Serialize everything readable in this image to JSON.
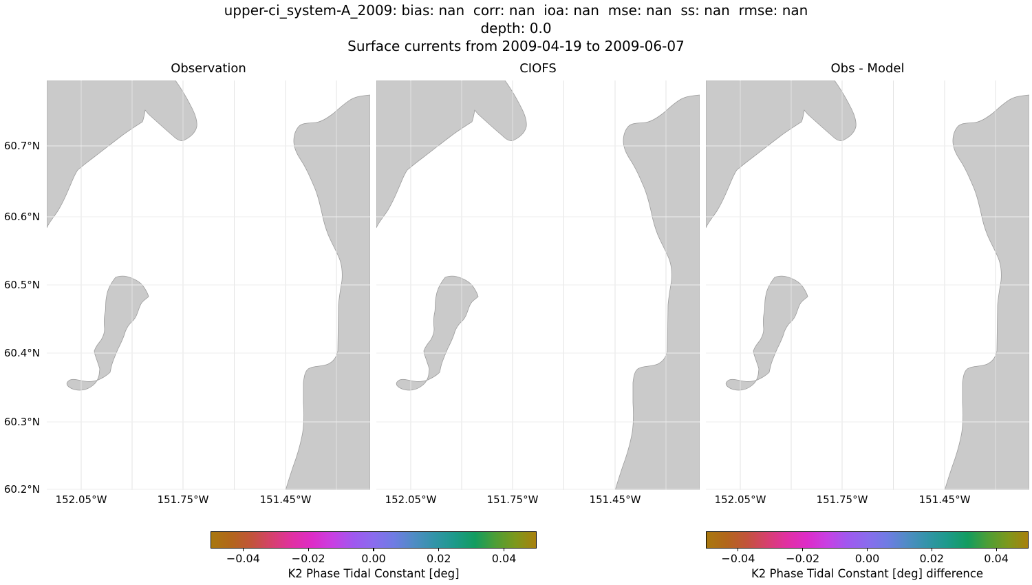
{
  "title": {
    "line1": "upper-ci_system-A_2009: bias: nan  corr: nan  ioa: nan  mse: nan  ss: nan  rmse: nan",
    "line2": "depth: 0.0",
    "line3": "Surface currents from 2009-04-19 to 2009-06-07"
  },
  "panels": [
    {
      "title": "Observation"
    },
    {
      "title": "CIOFS"
    },
    {
      "title": "Obs - Model"
    }
  ],
  "axes": {
    "lat_ticks": [
      "60.7°N",
      "60.6°N",
      "60.5°N",
      "60.4°N",
      "60.3°N",
      "60.2°N"
    ],
    "lon_ticks": [
      "152.05°W",
      "151.75°W",
      "151.45°W"
    ]
  },
  "colorbars": [
    {
      "label": "K2 Phase Tidal Constant [deg]",
      "ticks": [
        "−0.04",
        "−0.02",
        "0.00",
        "0.02",
        "0.04"
      ]
    },
    {
      "label": "K2 Phase Tidal Constant [deg] difference",
      "ticks": [
        "−0.04",
        "−0.02",
        "0.00",
        "0.02",
        "0.04"
      ]
    }
  ],
  "colors": {
    "land": "#cacaca",
    "coast": "#9c9c9c",
    "grid_vertical": "#e3e3e3",
    "grid_horizontal": "#eeeeee",
    "colormap_stops": [
      "#a8780f",
      "#b2661c",
      "#c2543b",
      "#d6406e",
      "#e130a3",
      "#dd2cc8",
      "#c840e3",
      "#a058ef",
      "#8a6cee",
      "#6f7ce3",
      "#4f8cc4",
      "#3294a8",
      "#1d9a8a",
      "#139c60",
      "#4d9e36",
      "#7d981c",
      "#a8800e"
    ]
  },
  "chart_data": {
    "type": "heatmap",
    "title": "upper-ci_system-A_2009: bias: nan  corr: nan  ioa: nan  mse: nan  ss: nan  rmse: nan",
    "subtitle": [
      "depth: 0.0",
      "Surface currents from 2009-04-19 to 2009-06-07"
    ],
    "subplots": [
      "Observation",
      "CIOFS",
      "Obs - Model"
    ],
    "variable": "K2 Phase Tidal Constant [deg]",
    "difference_variable": "K2 Phase Tidal Constant [deg] difference",
    "stats": {
      "bias": "nan",
      "corr": "nan",
      "ioa": "nan",
      "mse": "nan",
      "ss": "nan",
      "rmse": "nan"
    },
    "depth": 0.0,
    "date_start": "2009-04-19",
    "date_end": "2009-06-07",
    "lon_range_degW": [
      152.15,
      151.2
    ],
    "lat_range_degN": [
      60.2,
      60.795
    ],
    "lat_gridlines_degN": [
      60.7,
      60.6,
      60.5,
      60.4,
      60.3,
      60.2
    ],
    "lon_labeled_ticks_degW": [
      152.05,
      151.75,
      151.45
    ],
    "colorbar_range": [
      -0.05,
      0.05
    ],
    "colorbar_tick_values": [
      -0.04,
      -0.02,
      0.0,
      0.02,
      0.04
    ],
    "values": "all nan (no data plotted; land mask only)",
    "grid": true,
    "legend_position": "bottom colorbars"
  }
}
